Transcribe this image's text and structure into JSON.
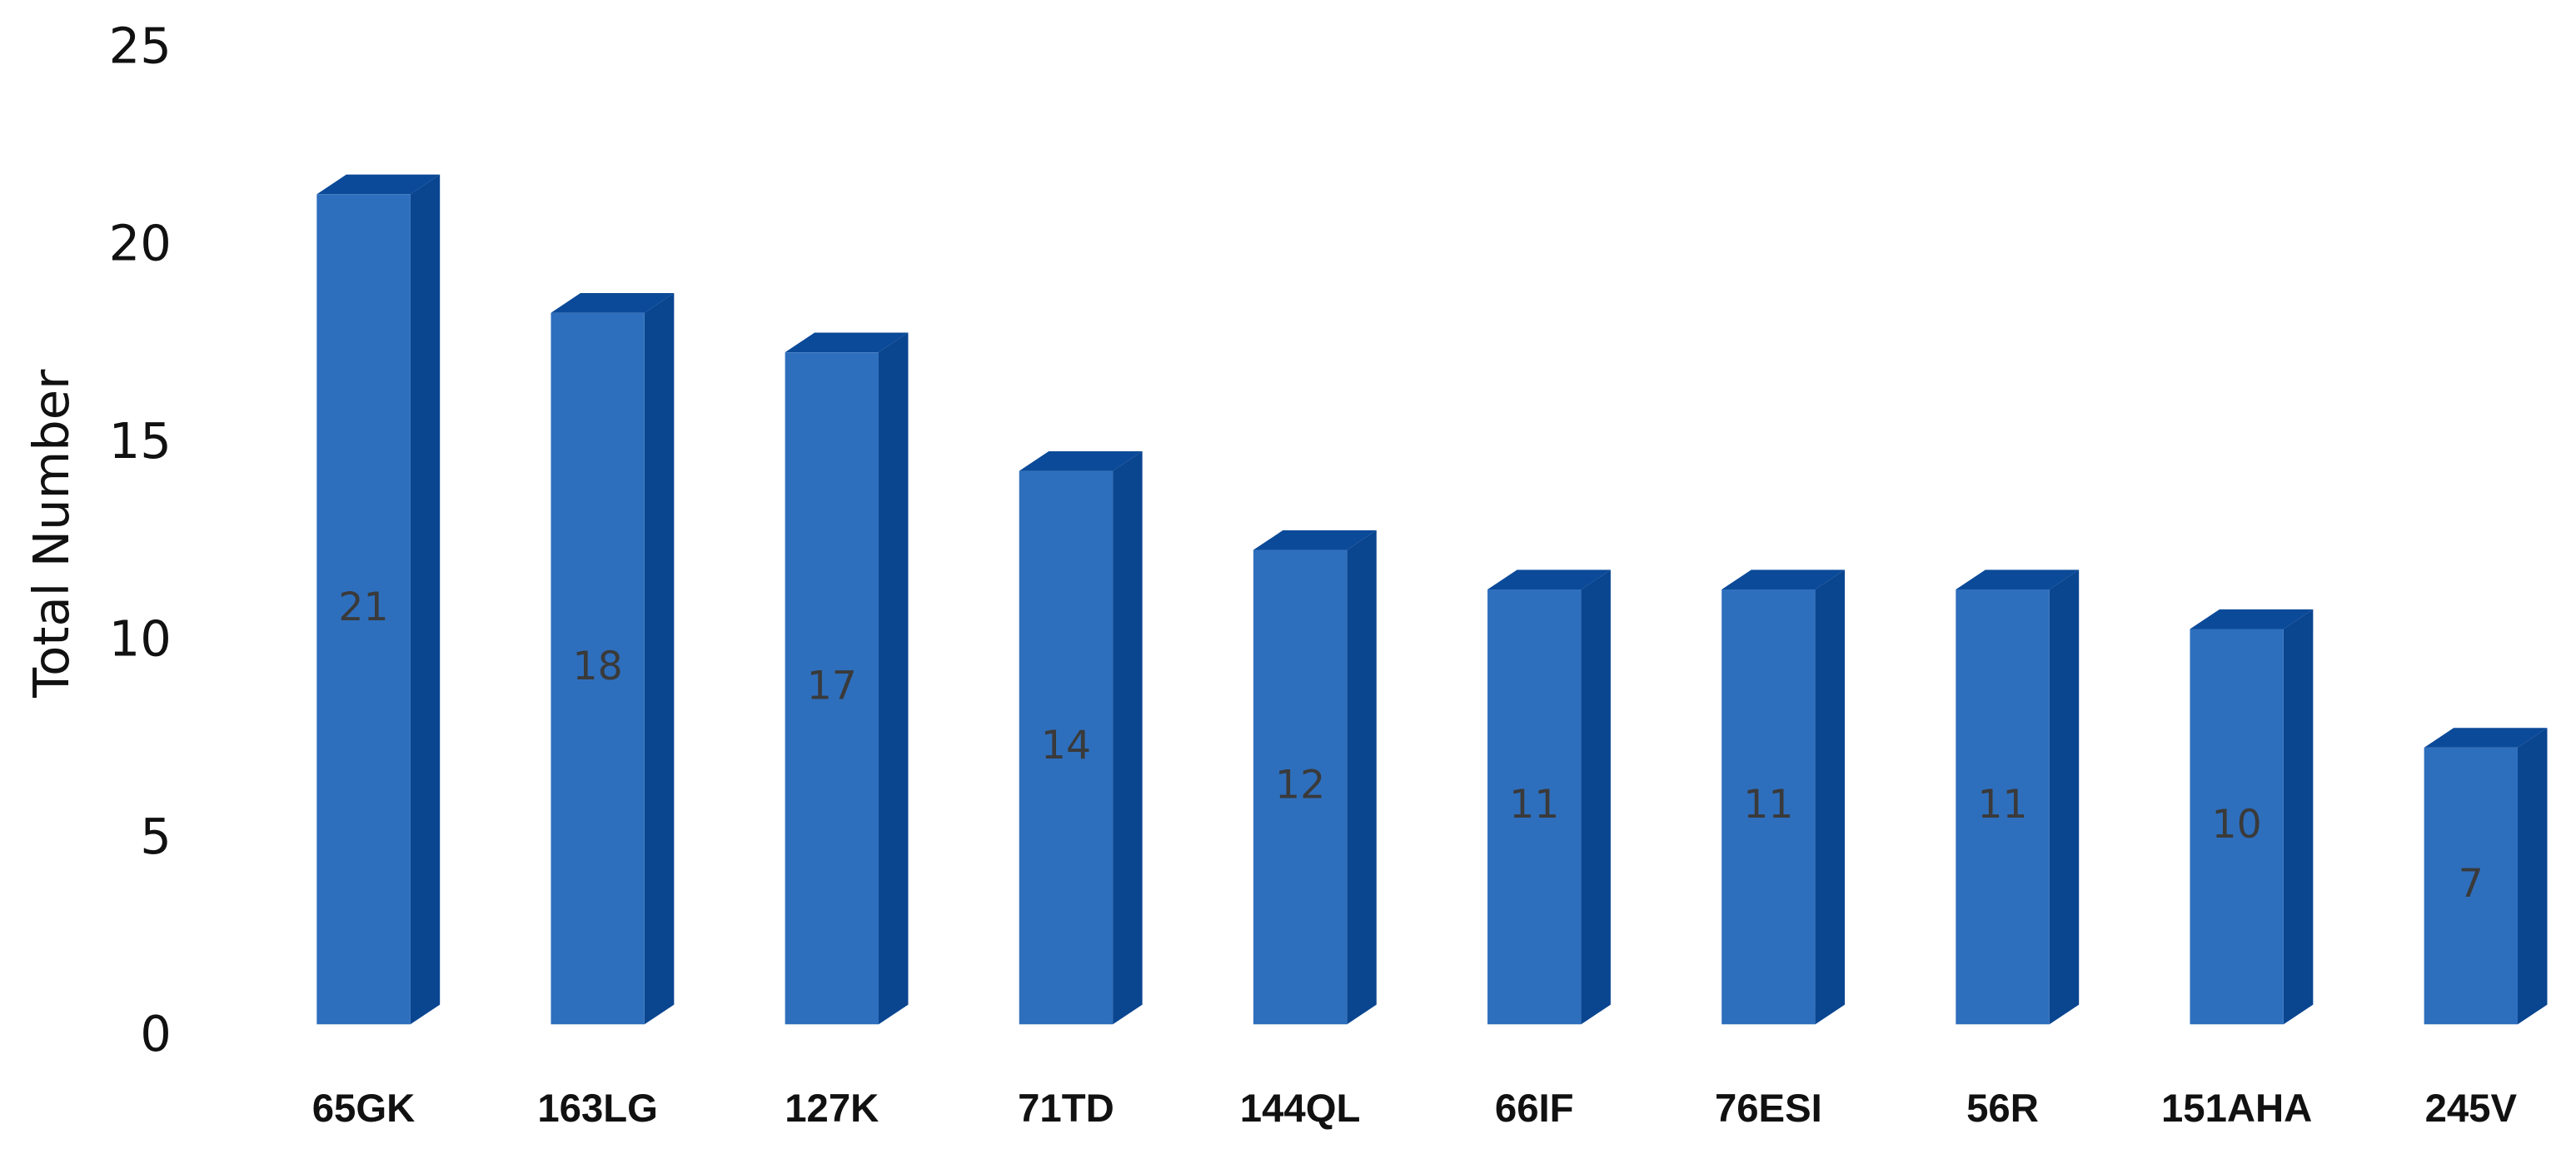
{
  "chart_data": {
    "type": "bar3d",
    "y_label": "Total Number",
    "categories": [
      "65GK",
      "163LG",
      "127K",
      "71TD",
      "144QL",
      "66IF",
      "76ESI",
      "56R",
      "151AHA",
      "245V"
    ],
    "values": [
      21,
      18,
      17,
      14,
      12,
      11,
      11,
      11,
      10,
      7
    ],
    "color": "#2e6fbd",
    "ylim": [
      0,
      25
    ],
    "yticks": [
      0,
      5,
      10,
      15,
      20,
      25
    ],
    "grid": false
  }
}
